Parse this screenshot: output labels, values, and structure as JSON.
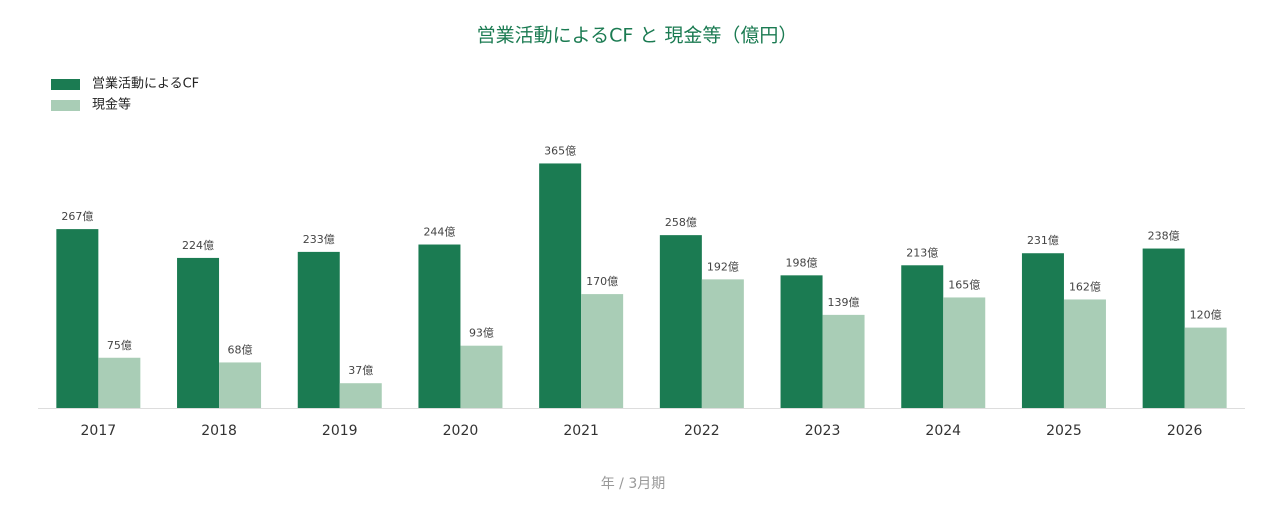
{
  "chart_data": {
    "type": "bar",
    "title": "営業活動によるCF と 現金等（億円）",
    "x_label": "年 / 3月期",
    "categories": [
      "2017",
      "2018",
      "2019",
      "2020",
      "2021",
      "2022",
      "2023",
      "2024",
      "2025",
      "2026"
    ],
    "series": [
      {
        "name": "営業活動によるCF",
        "color": "#1b7b52",
        "values": [
          267,
          224,
          233,
          244,
          365,
          258,
          198,
          213,
          231,
          238
        ],
        "value_labels": [
          "267億",
          "224億",
          "233億",
          "244億",
          "365億",
          "258億",
          "198億",
          "213億",
          "231億",
          "238億"
        ]
      },
      {
        "name": "現金等",
        "color": "#a9cdb6",
        "values": [
          75,
          68,
          37,
          93,
          170,
          192,
          139,
          165,
          162,
          120
        ],
        "value_labels": [
          "75億",
          "68億",
          "37億",
          "93億",
          "170億",
          "192億",
          "139億",
          "165億",
          "162億",
          "120億"
        ]
      }
    ],
    "ylim": [
      0,
      400
    ],
    "legend": "top-left"
  }
}
